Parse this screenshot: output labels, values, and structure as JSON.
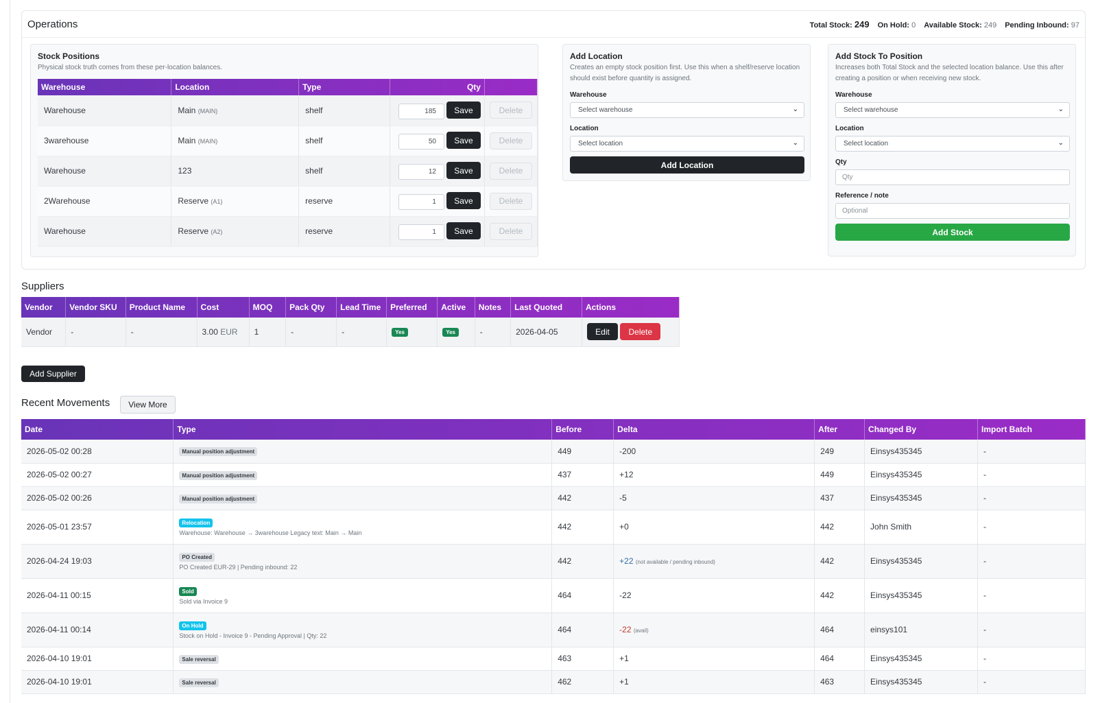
{
  "operations": {
    "title": "Operations",
    "stats": {
      "total_label": "Total Stock:",
      "total_value": "249",
      "hold_label": "On Hold:",
      "hold_value": "0",
      "avail_label": "Available Stock:",
      "avail_value": "249",
      "pending_label": "Pending Inbound:",
      "pending_value": "97"
    }
  },
  "stock_positions": {
    "title": "Stock Positions",
    "subtitle": "Physical stock truth comes from these per-location balances.",
    "headers": [
      "Warehouse",
      "Location",
      "Type",
      "Qty",
      ""
    ],
    "save_label": "Save",
    "delete_label": "Delete",
    "rows": [
      {
        "warehouse": "Warehouse",
        "location": "Main",
        "code": "(MAIN)",
        "type": "shelf",
        "qty": "185"
      },
      {
        "warehouse": "3warehouse",
        "location": "Main",
        "code": "(MAIN)",
        "type": "shelf",
        "qty": "50"
      },
      {
        "warehouse": "Warehouse",
        "location": "123",
        "code": "",
        "type": "shelf",
        "qty": "12"
      },
      {
        "warehouse": "2Warehouse",
        "location": "Reserve",
        "code": "(A1)",
        "type": "reserve",
        "qty": "1"
      },
      {
        "warehouse": "Warehouse",
        "location": "Reserve",
        "code": "(A2)",
        "type": "reserve",
        "qty": "1"
      }
    ]
  },
  "add_location": {
    "title": "Add Location",
    "subtitle": "Creates an empty stock position first. Use this when a shelf/reserve location should exist before quantity is assigned.",
    "warehouse_label": "Warehouse",
    "warehouse_value": "Select warehouse",
    "location_label": "Location",
    "location_value": "Select location",
    "button": "Add Location"
  },
  "add_stock": {
    "title": "Add Stock To Position",
    "subtitle": "Increases both Total Stock and the selected location balance. Use this after creating a position or when receiving new stock.",
    "warehouse_label": "Warehouse",
    "warehouse_value": "Select warehouse",
    "location_label": "Location",
    "location_value": "Select location",
    "qty_label": "Qty",
    "qty_placeholder": "Qty",
    "ref_label": "Reference / note",
    "ref_placeholder": "Optional",
    "button": "Add Stock"
  },
  "suppliers": {
    "title": "Suppliers",
    "headers": [
      "Vendor",
      "Vendor SKU",
      "Product Name",
      "Cost",
      "MOQ",
      "Pack Qty",
      "Lead Time",
      "Preferred",
      "Active",
      "Notes",
      "Last Quoted",
      "Actions"
    ],
    "rows": [
      {
        "vendor": "Vendor",
        "sku": "-",
        "product": "-",
        "cost": "3.00",
        "currency": "EUR",
        "moq": "1",
        "pack": "-",
        "lead": "-",
        "preferred": "Yes",
        "active": "Yes",
        "notes": "-",
        "last_quoted": "2026-04-05",
        "edit": "Edit",
        "delete": "Delete"
      }
    ],
    "add_button": "Add Supplier"
  },
  "movements": {
    "title": "Recent Movements",
    "view_more": "View More",
    "headers": [
      "Date",
      "Type",
      "Before",
      "Delta",
      "After",
      "Changed By",
      "Import Batch"
    ],
    "rows": [
      {
        "date": "2026-05-02 00:28",
        "badge": "Manual position adjustment",
        "badge_style": "gray",
        "note": "",
        "before": "449",
        "delta": "-200",
        "delta_note": "",
        "delta_style": "plain",
        "after": "249",
        "by": "Einsys435345",
        "batch": "-"
      },
      {
        "date": "2026-05-02 00:27",
        "badge": "Manual position adjustment",
        "badge_style": "gray",
        "note": "",
        "before": "437",
        "delta": "+12",
        "delta_note": "",
        "delta_style": "plain",
        "after": "449",
        "by": "Einsys435345",
        "batch": "-"
      },
      {
        "date": "2026-05-02 00:26",
        "badge": "Manual position adjustment",
        "badge_style": "gray",
        "note": "",
        "before": "442",
        "delta": "-5",
        "delta_note": "",
        "delta_style": "plain",
        "after": "437",
        "by": "Einsys435345",
        "batch": "-"
      },
      {
        "date": "2026-05-01 23:57",
        "badge": "Relocation",
        "badge_style": "cyan",
        "note": "Warehouse: Warehouse → 3warehouse   Legacy text: Main → Main",
        "before": "442",
        "delta": "+0",
        "delta_note": "",
        "delta_style": "plain",
        "after": "442",
        "by": "John Smith",
        "batch": "-"
      },
      {
        "date": "2026-04-24 19:03",
        "badge": "PO Created",
        "badge_style": "gray",
        "note": "PO Created EUR-29   | Pending inbound: 22",
        "before": "442",
        "delta": "+22",
        "delta_note": "(not available / pending inbound)",
        "delta_style": "pos",
        "after": "442",
        "by": "Einsys435345",
        "batch": "-"
      },
      {
        "date": "2026-04-11 00:15",
        "badge": "Sold",
        "badge_style": "green",
        "note": "Sold via Invoice 9",
        "before": "464",
        "delta": "-22",
        "delta_note": "",
        "delta_style": "plain",
        "after": "442",
        "by": "Einsys435345",
        "batch": "-"
      },
      {
        "date": "2026-04-11 00:14",
        "badge": "On Hold",
        "badge_style": "cyan",
        "note": "Stock on Hold - Invoice 9 - Pending Approval   | Qty: 22",
        "before": "464",
        "delta": "-22",
        "delta_note": "(avail)",
        "delta_style": "neg",
        "after": "464",
        "by": "einsys101",
        "batch": "-"
      },
      {
        "date": "2026-04-10 19:01",
        "badge": "Sale reversal",
        "badge_style": "gray",
        "note": "",
        "before": "463",
        "delta": "+1",
        "delta_note": "",
        "delta_style": "plain",
        "after": "464",
        "by": "Einsys435345",
        "batch": "-"
      },
      {
        "date": "2026-04-10 19:01",
        "badge": "Sale reversal",
        "badge_style": "gray",
        "note": "",
        "before": "462",
        "delta": "+1",
        "delta_note": "",
        "delta_style": "plain",
        "after": "463",
        "by": "Einsys435345",
        "batch": "-"
      }
    ]
  }
}
